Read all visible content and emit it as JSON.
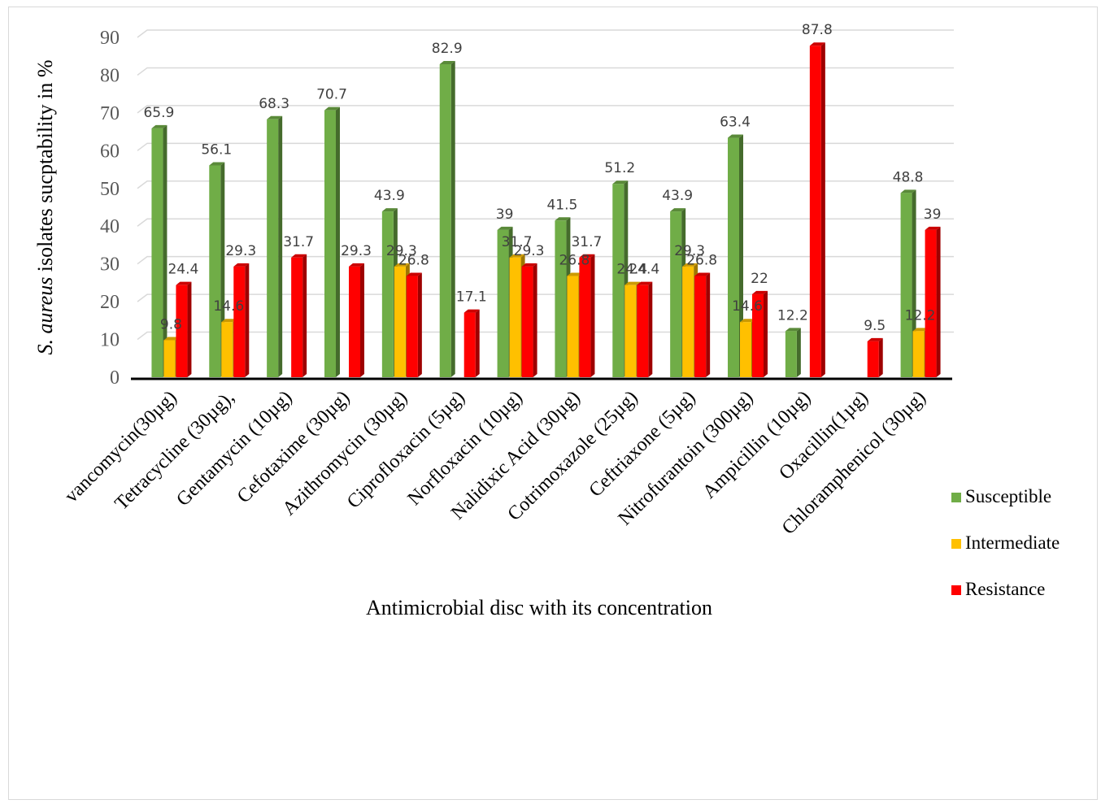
{
  "chart_data": {
    "type": "bar",
    "title": "",
    "xlabel": "Antimicrobial disc with its concentration",
    "ylabel_italic": "S. aureus",
    "ylabel_rest": " isolates sucptability in %",
    "ylim": [
      0,
      90
    ],
    "y_ticks": [
      "0",
      "10",
      "20",
      "30",
      "40",
      "50",
      "60",
      "70",
      "80",
      "90"
    ],
    "grid": true,
    "legend_position": "right",
    "categories": [
      "vancomycin(30µg)",
      "Tetracycline (30µg),",
      "Gentamycin (10µg)",
      "Cefotaxime (30µg)",
      "Azithromycin (30µg)",
      "Ciprofloxacin (5µg)",
      "Norfloxacin (10µg)",
      "Nalidixic Acid (30µg)",
      "Cotrimoxazole (25µg)",
      "Ceftriaxone (5µg)",
      "Nitrofurantoin (300µg)",
      "Ampicillin (10µg)",
      "Oxacillin(1µg)",
      "Chloramphenicol (30µg)"
    ],
    "series": [
      {
        "name": "Susceptible",
        "color": "#70ad47",
        "values": [
          65.9,
          56.1,
          68.3,
          70.7,
          43.9,
          82.9,
          39,
          41.5,
          51.2,
          43.9,
          63.4,
          12.2,
          null,
          48.8
        ],
        "labels": [
          "65.9",
          "56.1",
          "68.3",
          "70.7",
          "43.9",
          "82.9",
          "39",
          "41.5",
          "51.2",
          "43.9",
          "63.4",
          "12.2",
          "",
          "48.8"
        ]
      },
      {
        "name": "Intermediate",
        "color": "#ffc000",
        "values": [
          9.8,
          14.6,
          null,
          null,
          29.3,
          null,
          31.7,
          26.8,
          24.4,
          29.3,
          14.6,
          null,
          null,
          12.2
        ],
        "labels": [
          "9.8",
          "14.6",
          "",
          "",
          "29.3",
          "",
          "31.7",
          "26.8",
          "24.4",
          "29.3",
          "14.6",
          "",
          "",
          "12.2"
        ]
      },
      {
        "name": "Resistance",
        "color": "#ff0000",
        "values": [
          24.4,
          29.3,
          31.7,
          29.3,
          26.8,
          17.1,
          29.3,
          31.7,
          24.4,
          26.8,
          22,
          87.8,
          9.5,
          39
        ],
        "labels": [
          "24.4",
          "29.3",
          "31.7",
          "29.3",
          "26.8",
          "17.1",
          "29.3",
          "31.7",
          "24.4",
          "26.8",
          "22",
          "87.8",
          "9.5",
          "39"
        ]
      }
    ]
  }
}
